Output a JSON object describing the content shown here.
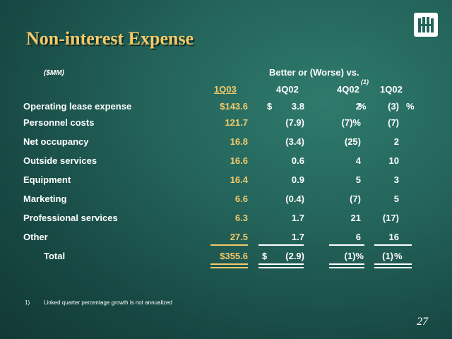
{
  "slide": {
    "title": "Non-interest Expense",
    "unit_label": "($MM)",
    "comparison_header": "Better or (Worse) vs.",
    "footnote_marker": "(1)",
    "columns": [
      "1Q03",
      "4Q02",
      "4Q02",
      "1Q02"
    ],
    "rows": [
      {
        "label": "Operating lease expense",
        "c1q03": "$143.6",
        "dollar": "$",
        "c4q02": "3.8",
        "pct4q02": "2",
        "pct4q02_sign": "%",
        "c1q02": "(3)",
        "c1q02_sign": "%"
      },
      {
        "label": "Personnel costs",
        "c1q03": "121.7",
        "dollar": "",
        "c4q02": "(7.9)",
        "pct4q02": "(7)%",
        "pct4q02_sign": "",
        "c1q02": "(7)",
        "c1q02_sign": ""
      },
      {
        "label": "Net occupancy",
        "c1q03": "16.8",
        "dollar": "",
        "c4q02": "(3.4)",
        "pct4q02": "(25)",
        "pct4q02_sign": "",
        "c1q02": "2",
        "c1q02_sign": ""
      },
      {
        "label": "Outside services",
        "c1q03": "16.6",
        "dollar": "",
        "c4q02": "0.6",
        "pct4q02": "4",
        "pct4q02_sign": "",
        "c1q02": "10",
        "c1q02_sign": ""
      },
      {
        "label": "Equipment",
        "c1q03": "16.4",
        "dollar": "",
        "c4q02": "0.9",
        "pct4q02": "5",
        "pct4q02_sign": "",
        "c1q02": "3",
        "c1q02_sign": ""
      },
      {
        "label": "Marketing",
        "c1q03": "6.6",
        "dollar": "",
        "c4q02": "(0.4)",
        "pct4q02": "(7)",
        "pct4q02_sign": "",
        "c1q02": "5",
        "c1q02_sign": ""
      },
      {
        "label": "Professional services",
        "c1q03": "6.3",
        "dollar": "",
        "c4q02": "1.7",
        "pct4q02": "21",
        "pct4q02_sign": "",
        "c1q02": "(17)",
        "c1q02_sign": ""
      },
      {
        "label": "Other",
        "c1q03": "27.5",
        "dollar": "",
        "c4q02": "1.7",
        "pct4q02": "6",
        "pct4q02_sign": "",
        "c1q02": "16",
        "c1q02_sign": ""
      }
    ],
    "total": {
      "label": "Total",
      "c1q03": "$355.6",
      "dollar": "$",
      "c4q02": "(2.9)",
      "pct4q02": "(1)%",
      "c1q02": "(1)",
      "c1q02_sign": "%"
    },
    "footnote_number": "1)",
    "footnote_text": "Linked quarter percentage growth is not annualized",
    "page_number": "27",
    "colors": {
      "accent": "#f2c96a",
      "text": "#ffffff",
      "background": "#23635a"
    }
  }
}
